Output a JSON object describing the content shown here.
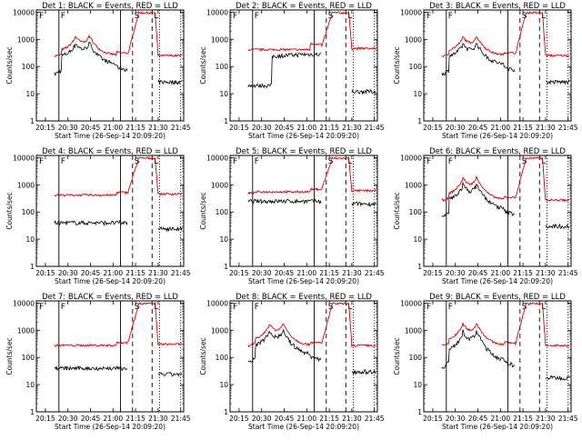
{
  "page": {
    "background": "#ffffff",
    "axis_color": "#000000",
    "series_colors": {
      "events": "#000000",
      "lld": "#e00000"
    }
  },
  "shared": {
    "ylabel": "Counts/sec",
    "xlabel": "Start Time (26-Sep-14 20:09:20)",
    "x_tick_labels": [
      "20:15",
      "20:30",
      "20:45",
      "21:00",
      "21:15",
      "21:30",
      "21:45"
    ],
    "y_tick_labels": [
      "1",
      "10",
      "100",
      "1000",
      "10000"
    ],
    "marker_labels": {
      "first": "F",
      "second": "S",
      "third": "L"
    }
  },
  "chart_data": [
    {
      "type": "line",
      "title": "Det 1: BLACK = Events, RED = LLD",
      "profile": "flare",
      "xlim": [
        "20:09",
        "21:47"
      ],
      "ylim": [
        1,
        12000
      ],
      "yscale": "log",
      "markers": {
        "solid": [
          "20:24",
          "21:05"
        ],
        "dashed": [
          "21:13",
          "21:26"
        ],
        "dotted": [
          "21:31",
          "21:45"
        ]
      },
      "lld_base": 230,
      "events_base": 45,
      "peaks": [
        {
          "t": "20:35",
          "h": 900
        },
        {
          "t": "20:44",
          "h": 1000
        }
      ]
    },
    {
      "type": "line",
      "title": "Det 2: BLACK = Events, RED = LLD",
      "profile": "step",
      "xlim": [
        "20:09",
        "21:47"
      ],
      "ylim": [
        1,
        12000
      ],
      "yscale": "log",
      "markers": {
        "solid": [
          "20:24",
          "21:05"
        ],
        "dashed": [
          "21:13",
          "21:26"
        ],
        "dotted": [
          "21:31",
          "21:45"
        ]
      },
      "lld_base": 420,
      "events_base": 20,
      "step": {
        "t": "20:37",
        "value": 280
      }
    },
    {
      "type": "line",
      "title": "Det 3: BLACK = Events, RED = LLD",
      "profile": "flare",
      "xlim": [
        "20:09",
        "21:47"
      ],
      "ylim": [
        1,
        12000
      ],
      "yscale": "log",
      "markers": {
        "solid": [
          "20:24",
          "21:05"
        ],
        "dashed": [
          "21:13",
          "21:26"
        ],
        "dotted": [
          "21:31",
          "21:45"
        ]
      },
      "lld_base": 230,
      "events_base": 45,
      "peaks": [
        {
          "t": "20:35",
          "h": 850
        },
        {
          "t": "20:44",
          "h": 950
        }
      ]
    },
    {
      "type": "line",
      "title": "Det 4: BLACK = Events, RED = LLD",
      "profile": "flat",
      "xlim": [
        "20:09",
        "21:47"
      ],
      "ylim": [
        1,
        12000
      ],
      "yscale": "log",
      "markers": {
        "solid": [
          "20:24",
          "21:05"
        ],
        "dashed": [
          "21:13",
          "21:26"
        ],
        "dotted": [
          "21:31",
          "21:45"
        ]
      },
      "lld_base": 420,
      "events_base": 40
    },
    {
      "type": "line",
      "title": "Det 5: BLACK = Events, RED = LLD",
      "profile": "flat_close",
      "xlim": [
        "20:09",
        "21:47"
      ],
      "ylim": [
        1,
        12000
      ],
      "yscale": "log",
      "markers": {
        "solid": [
          "20:24",
          "21:05"
        ],
        "dashed": [
          "21:13",
          "21:26"
        ],
        "dotted": [
          "21:31",
          "21:45"
        ]
      },
      "lld_base": 550,
      "events_base": 250
    },
    {
      "type": "line",
      "title": "Det 6: BLACK = Events, RED = LLD",
      "profile": "flare",
      "xlim": [
        "20:09",
        "21:47"
      ],
      "ylim": [
        1,
        12000
      ],
      "yscale": "log",
      "markers": {
        "solid": [
          "20:24",
          "21:05"
        ],
        "dashed": [
          "21:13",
          "21:26"
        ],
        "dotted": [
          "21:31",
          "21:45"
        ]
      },
      "lld_base": 250,
      "events_base": 50,
      "peaks": [
        {
          "t": "20:35",
          "h": 1400
        },
        {
          "t": "20:44",
          "h": 1500
        }
      ]
    },
    {
      "type": "line",
      "title": "Det 7: BLACK = Events, RED = LLD",
      "profile": "flat",
      "xlim": [
        "20:09",
        "21:47"
      ],
      "ylim": [
        1,
        12000
      ],
      "yscale": "log",
      "markers": {
        "solid": [
          "20:24",
          "21:05"
        ],
        "dashed": [
          "21:13",
          "21:26"
        ],
        "dotted": [
          "21:31",
          "21:45"
        ]
      },
      "lld_base": 280,
      "events_base": 40
    },
    {
      "type": "line",
      "title": "Det 8: BLACK = Events, RED = LLD",
      "profile": "flare",
      "xlim": [
        "20:09",
        "21:47"
      ],
      "ylim": [
        1,
        12000
      ],
      "yscale": "log",
      "markers": {
        "solid": [
          "20:24",
          "21:05"
        ],
        "dashed": [
          "21:13",
          "21:26"
        ],
        "dotted": [
          "21:31",
          "21:45"
        ]
      },
      "lld_base": 250,
      "events_base": 50,
      "peaks": [
        {
          "t": "20:35",
          "h": 1300
        },
        {
          "t": "20:44",
          "h": 1400
        }
      ]
    },
    {
      "type": "line",
      "title": "Det 9: BLACK = Events, RED = LLD",
      "profile": "flare",
      "xlim": [
        "20:09",
        "21:47"
      ],
      "ylim": [
        1,
        12000
      ],
      "yscale": "log",
      "markers": {
        "solid": [
          "20:24",
          "21:05"
        ],
        "dashed": [
          "21:13",
          "21:26"
        ],
        "dotted": [
          "21:31",
          "21:45"
        ]
      },
      "lld_base": 250,
      "events_base": 30,
      "peaks": [
        {
          "t": "20:35",
          "h": 1300
        },
        {
          "t": "20:44",
          "h": 1400
        }
      ]
    }
  ]
}
